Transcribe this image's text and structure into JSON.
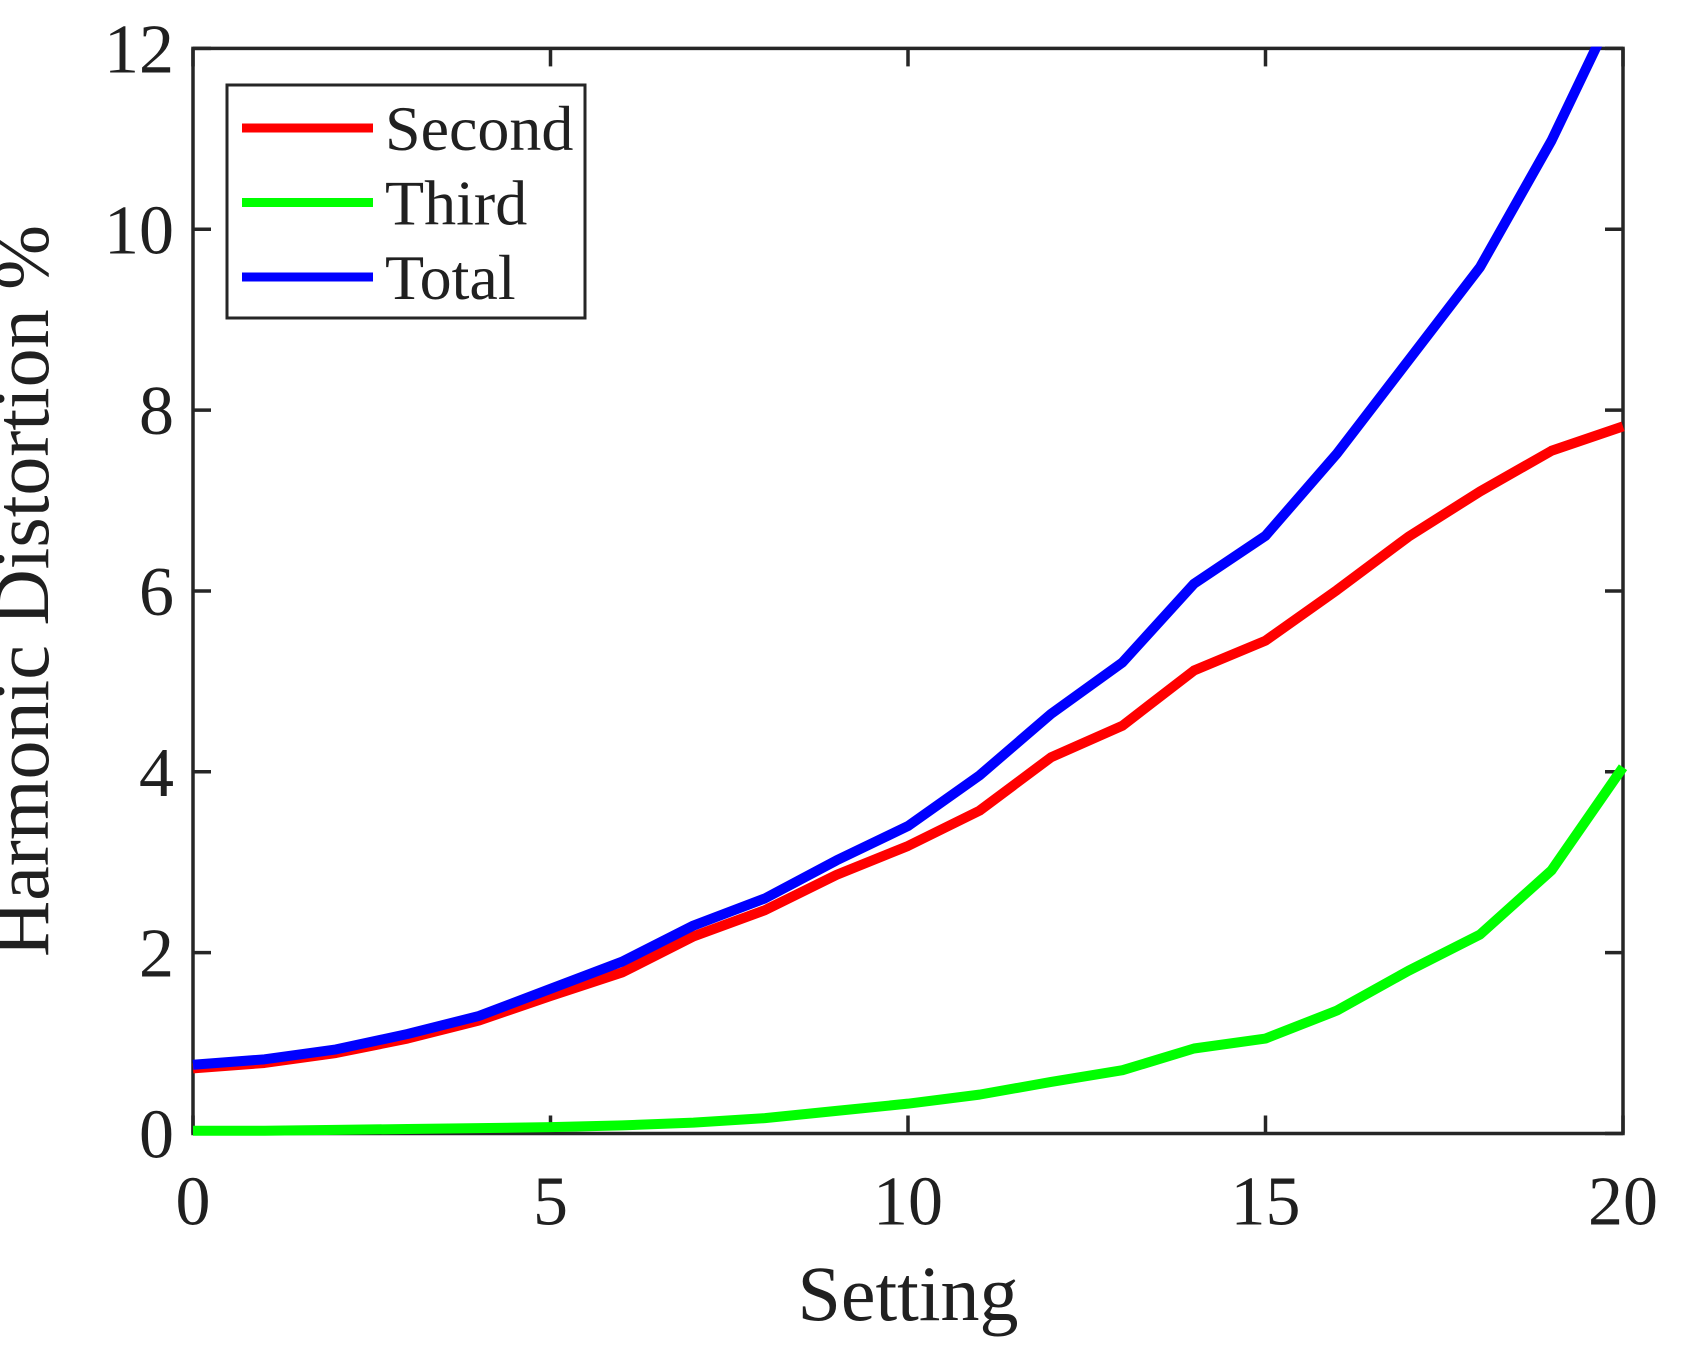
{
  "chart_data": {
    "type": "line",
    "title": "",
    "xlabel": "Setting",
    "ylabel": "Harmonic Distortion %",
    "x": [
      0,
      1,
      2,
      3,
      4,
      5,
      6,
      7,
      8,
      9,
      10,
      11,
      12,
      13,
      14,
      15,
      16,
      17,
      18,
      19,
      20
    ],
    "series": [
      {
        "name": "Second",
        "color": "#ff0000",
        "values": [
          0.72,
          0.78,
          0.89,
          1.05,
          1.25,
          1.52,
          1.78,
          2.18,
          2.47,
          2.86,
          3.18,
          3.57,
          4.16,
          4.51,
          5.12,
          5.45,
          6.01,
          6.6,
          7.1,
          7.55,
          7.82
        ]
      },
      {
        "name": "Third",
        "color": "#00ff00",
        "values": [
          0.03,
          0.03,
          0.04,
          0.05,
          0.06,
          0.07,
          0.09,
          0.12,
          0.17,
          0.25,
          0.33,
          0.43,
          0.57,
          0.7,
          0.94,
          1.05,
          1.36,
          1.8,
          2.2,
          2.91,
          4.05
        ]
      },
      {
        "name": "Total",
        "color": "#0000ff",
        "values": [
          0.76,
          0.82,
          0.93,
          1.1,
          1.3,
          1.6,
          1.9,
          2.3,
          2.6,
          3.02,
          3.4,
          3.96,
          4.64,
          5.21,
          6.08,
          6.61,
          7.52,
          8.55,
          9.58,
          10.98,
          12.63
        ]
      }
    ],
    "xlim": [
      0,
      20
    ],
    "ylim": [
      0,
      12
    ],
    "xticks": [
      0,
      5,
      10,
      15,
      20
    ],
    "yticks": [
      0,
      2,
      4,
      6,
      8,
      10,
      12
    ],
    "grid": false,
    "legend_position": "top-left",
    "note": "Total series exceeds the y-axis maximum near x=20 and is clipped at the top frame"
  },
  "style": {
    "frame_color": "#262626",
    "tick_label_color": "#202020",
    "background_color": "#ffffff",
    "line_width": 10,
    "legend_sample_width": 9
  }
}
